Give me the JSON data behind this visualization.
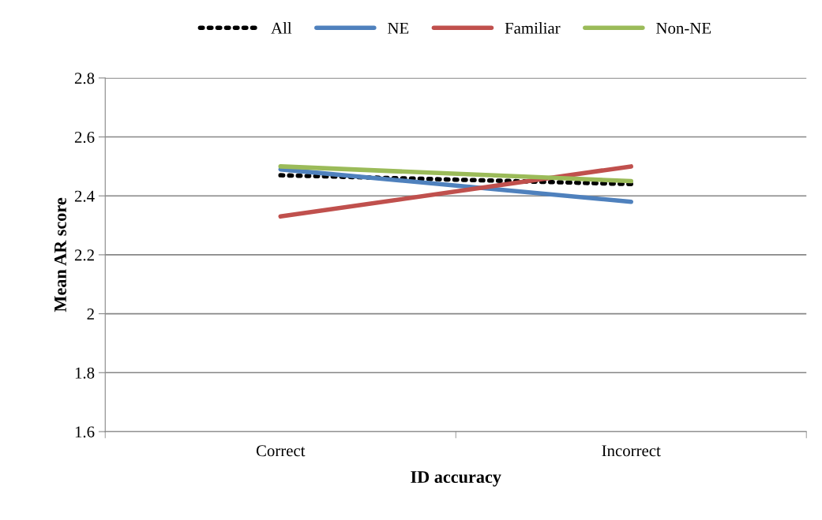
{
  "chart_data": {
    "type": "line",
    "xlabel": "ID accuracy",
    "ylabel": "Mean AR score",
    "categories": [
      "Correct",
      "Incorrect"
    ],
    "series": [
      {
        "name": "All",
        "color": "#000000",
        "values": [
          2.47,
          2.44
        ],
        "line_style": "dotted"
      },
      {
        "name": "NE",
        "color": "#4f81bd",
        "values": [
          2.49,
          2.38
        ]
      },
      {
        "name": "Familiar",
        "color": "#c0504d",
        "values": [
          2.33,
          2.5
        ]
      },
      {
        "name": "Non-NE",
        "color": "#9bbb59",
        "values": [
          2.5,
          2.45
        ]
      }
    ],
    "ylim": [
      1.6,
      2.8
    ],
    "yticks": [
      1.6,
      1.8,
      2,
      2.2,
      2.4,
      2.6,
      2.8
    ],
    "grid": "y",
    "legend": "top",
    "line_style": "solid",
    "marker": "none"
  }
}
